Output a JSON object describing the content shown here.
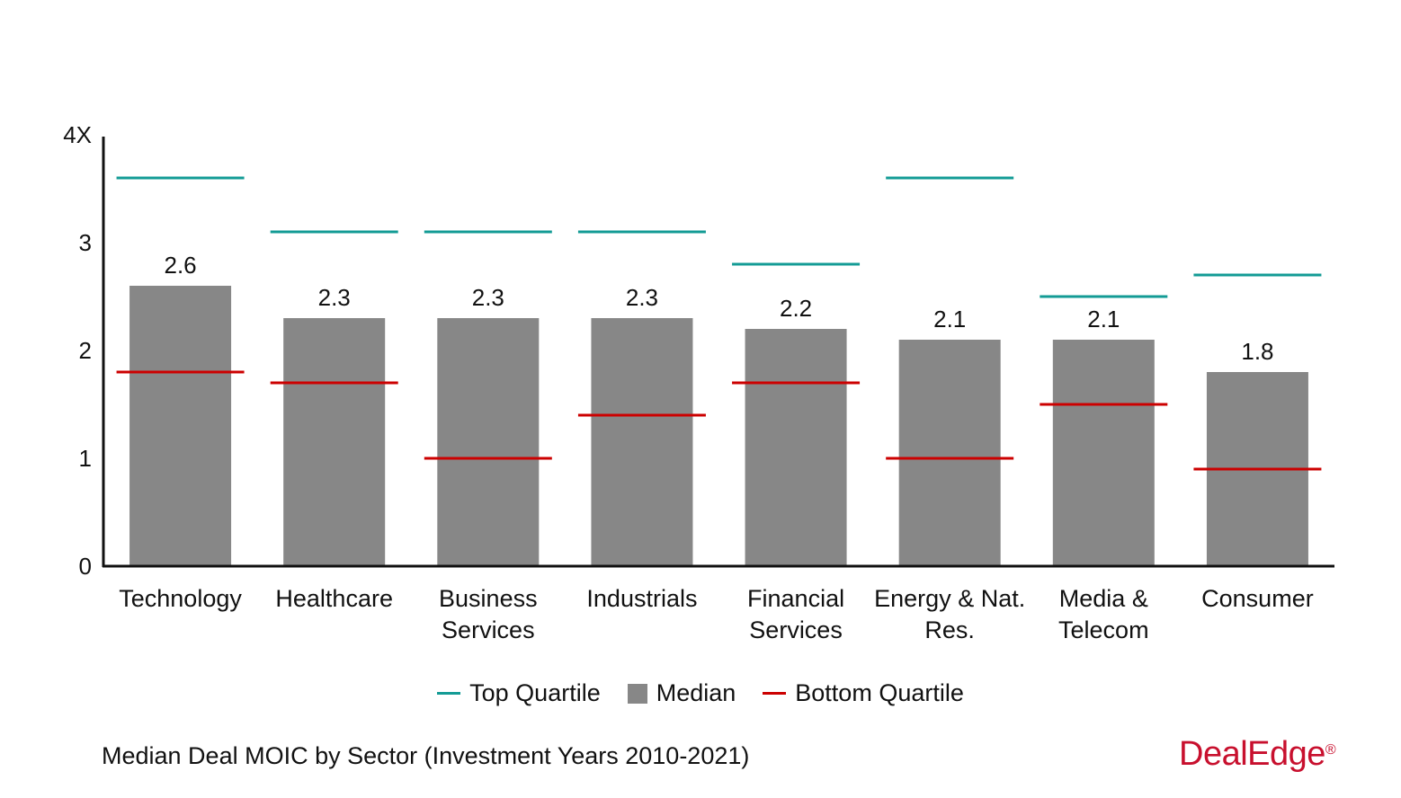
{
  "chart_data": {
    "type": "bar",
    "title": "",
    "xlabel": "",
    "ylabel": "",
    "ylim": [
      0,
      4
    ],
    "y_ticks": [
      "0",
      "1",
      "2",
      "3",
      "4X"
    ],
    "grid": false,
    "legend_position": "bottom",
    "categories": [
      [
        "Technology"
      ],
      [
        "Healthcare"
      ],
      [
        "Business",
        "Services"
      ],
      [
        "Industrials"
      ],
      [
        "Financial",
        "Services"
      ],
      [
        "Energy & Nat.",
        "Res."
      ],
      [
        "Media &",
        "Telecom"
      ],
      [
        "Consumer"
      ]
    ],
    "series": [
      {
        "name": "Top Quartile",
        "kind": "line-marker",
        "color": "#139b95",
        "values": [
          3.6,
          3.1,
          3.1,
          3.1,
          2.8,
          3.6,
          2.5,
          2.7
        ]
      },
      {
        "name": "Median",
        "kind": "bar",
        "color": "#878787",
        "values": [
          2.6,
          2.3,
          2.3,
          2.3,
          2.2,
          2.1,
          2.1,
          1.8
        ],
        "labels": [
          "2.6",
          "2.3",
          "2.3",
          "2.3",
          "2.2",
          "2.1",
          "2.1",
          "1.8"
        ]
      },
      {
        "name": "Bottom Quartile",
        "kind": "line-marker",
        "color": "#cc0000",
        "values": [
          1.8,
          1.7,
          1.0,
          1.4,
          1.7,
          1.0,
          1.5,
          0.9
        ]
      }
    ]
  },
  "caption": "Median Deal MOIC by Sector (Investment Years 2010-2021)",
  "logo": {
    "text": "DealEdge",
    "mark": "®"
  }
}
